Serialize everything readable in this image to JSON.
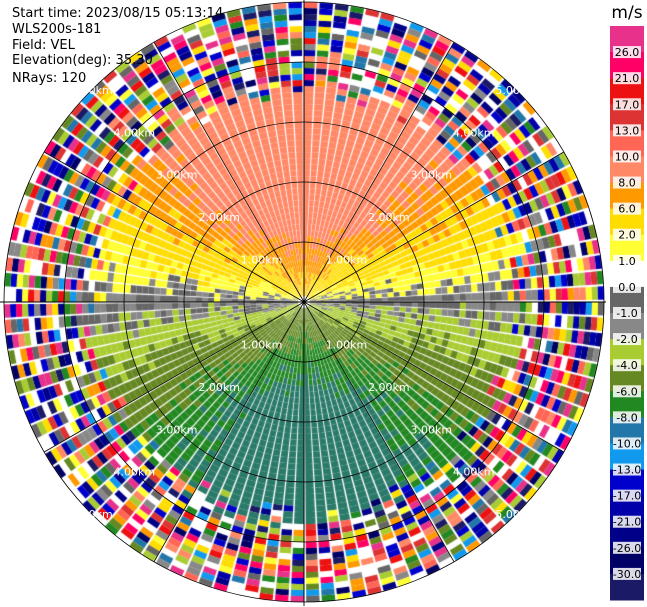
{
  "header": {
    "start_time": "Start time: 2023/08/15 05:13:14",
    "instrument": "WLS200s-181",
    "field": "Field: VEL",
    "elevation": "Elevation(deg): 35.30",
    "nrays": "NRays: 120"
  },
  "chart_data": {
    "type": "heatmap",
    "projection": "ppi-polar",
    "field": "VEL",
    "units": "m/s",
    "range_rings_km": [
      1.0,
      2.0,
      3.0,
      4.0,
      5.0
    ],
    "range_ring_labels": [
      "1.00km",
      "2.00km",
      "3.00km",
      "4.00km",
      "5.00km"
    ],
    "max_range_km": 5.0,
    "n_rays": 120,
    "elevation_deg": 35.3,
    "colorbar": {
      "title": "m/s",
      "ticks": [
        "26.0",
        "21.0",
        "17.0",
        "13.0",
        "10.0",
        "8.0",
        "6.0",
        "2.0",
        "1.0",
        "0.0",
        "-1.0",
        "-2.0",
        "-4.0",
        "-6.0",
        "-8.0",
        "-10.0",
        "-13.0",
        "-17.0",
        "-21.0",
        "-26.0",
        "-30.0"
      ],
      "colors": [
        "#e8318a",
        "#ff0066",
        "#ee1111",
        "#dd3333",
        "#ff6655",
        "#ff8866",
        "#ff9900",
        "#ffdd00",
        "#ffff33",
        "#ffffff",
        "#666666",
        "#888888",
        "#aacc33",
        "#668822",
        "#228822",
        "#2277aa",
        "#1199ee",
        "#0000cc",
        "#0000aa",
        "#000088",
        "#000066",
        "#1a1a66"
      ]
    },
    "wind_pattern": {
      "near_field_max_km": 3.6,
      "toward_sector": "south",
      "away_sector": "north",
      "peak_away_ms": 8.0,
      "peak_toward_ms": -8.0
    }
  }
}
